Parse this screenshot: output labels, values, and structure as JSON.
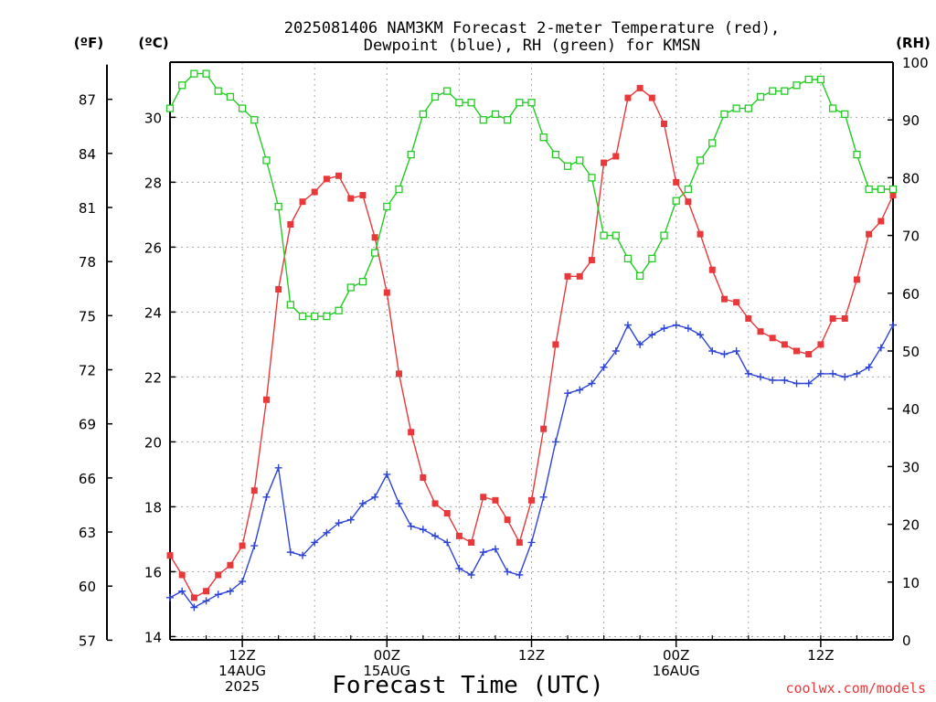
{
  "chart_data": {
    "type": "line",
    "title_line1": "2025081406 NAM3KM Forecast 2-meter Temperature (red),",
    "title_line2": "Dewpoint (blue), RH (green) for KMSN",
    "xlabel": "Forecast Time (UTC)",
    "units": {
      "fahrenheit": "(ºF)",
      "celsius": "(ºC)",
      "rh": "(RH)"
    },
    "credit": "coolwx.com/models",
    "x_range_hours": [
      0,
      60
    ],
    "celsius_range": [
      13.9,
      31.7
    ],
    "rh_range": [
      0,
      100
    ],
    "celsius_ticks": [
      14,
      16,
      18,
      20,
      22,
      24,
      26,
      28,
      30
    ],
    "fahrenheit_ticks": [
      57,
      60,
      63,
      66,
      69,
      72,
      75,
      78,
      81,
      84,
      87
    ],
    "rh_ticks": [
      0,
      10,
      20,
      30,
      40,
      50,
      60,
      70,
      80,
      90,
      100
    ],
    "x_ticks": [
      {
        "hour": 6,
        "lines": [
          "12Z",
          "14AUG",
          "2025"
        ]
      },
      {
        "hour": 18,
        "lines": [
          "00Z",
          "15AUG"
        ]
      },
      {
        "hour": 30,
        "lines": [
          "12Z",
          ""
        ]
      },
      {
        "hour": 42,
        "lines": [
          "00Z",
          "16AUG"
        ]
      },
      {
        "hour": 54,
        "lines": [
          "12Z",
          ""
        ]
      }
    ],
    "series": [
      {
        "key": "temperature",
        "axis": "celsius",
        "color": "#e8383a",
        "marker": "filled-square",
        "values": [
          16.5,
          15.9,
          15.2,
          15.4,
          15.9,
          16.2,
          16.8,
          18.5,
          21.3,
          24.7,
          26.7,
          27.4,
          27.7,
          28.1,
          28.2,
          27.5,
          27.6,
          26.3,
          24.6,
          22.1,
          20.3,
          18.9,
          18.1,
          17.8,
          17.1,
          16.9,
          18.3,
          18.2,
          17.6,
          16.9,
          18.2,
          20.4,
          23.0,
          25.1,
          25.1,
          25.6,
          28.6,
          28.8,
          30.6,
          30.9,
          30.6,
          29.8,
          28.0,
          27.4,
          26.4,
          25.3,
          24.4,
          24.3,
          23.8,
          23.4,
          23.2,
          23.0,
          22.8,
          22.7,
          23.0,
          23.8,
          23.8,
          25.0,
          26.4,
          26.8,
          27.6
        ]
      },
      {
        "key": "dewpoint",
        "axis": "celsius",
        "color": "#2e44d8",
        "marker": "plus",
        "values": [
          15.2,
          15.4,
          14.9,
          15.1,
          15.3,
          15.4,
          15.7,
          16.8,
          18.3,
          19.2,
          16.6,
          16.5,
          16.9,
          17.2,
          17.5,
          17.6,
          18.1,
          18.3,
          19.0,
          18.1,
          17.4,
          17.3,
          17.1,
          16.9,
          16.1,
          15.9,
          16.6,
          16.7,
          16.0,
          15.9,
          16.9,
          18.3,
          20.0,
          21.5,
          21.6,
          21.8,
          22.3,
          22.8,
          23.6,
          23.0,
          23.3,
          23.5,
          23.6,
          23.5,
          23.3,
          22.8,
          22.7,
          22.8,
          22.1,
          22.0,
          21.9,
          21.9,
          21.8,
          21.8,
          22.1,
          22.1,
          22.0,
          22.1,
          22.3,
          22.9,
          23.6
        ]
      },
      {
        "key": "rh",
        "axis": "rh",
        "color": "#22cc22",
        "marker": "open-square",
        "values": [
          92,
          96,
          98,
          98,
          95,
          94,
          92,
          90,
          83,
          75,
          58,
          56,
          56,
          56,
          57,
          61,
          62,
          67,
          75,
          78,
          84,
          91,
          94,
          95,
          93,
          93,
          90,
          91,
          90,
          93,
          93,
          87,
          84,
          82,
          83,
          80,
          70,
          70,
          66,
          63,
          66,
          70,
          76,
          78,
          83,
          86,
          91,
          92,
          92,
          94,
          95,
          95,
          96,
          97,
          97,
          92,
          91,
          84,
          78,
          78,
          78
        ]
      }
    ]
  }
}
